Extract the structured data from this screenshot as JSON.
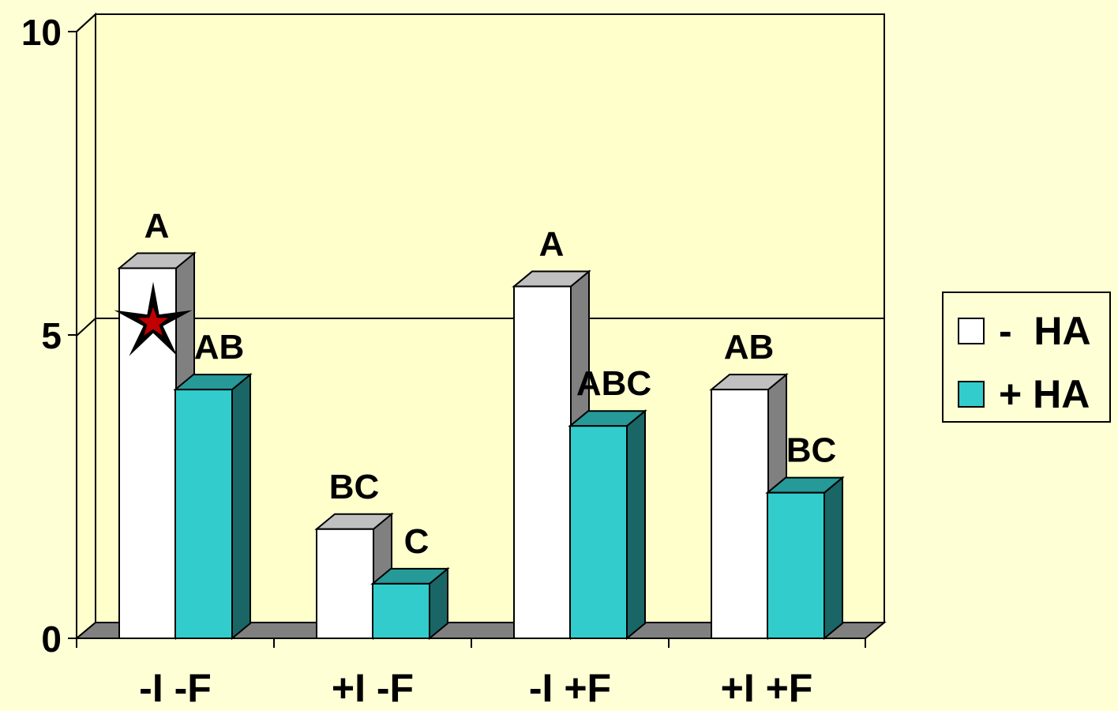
{
  "chart_data": {
    "type": "bar",
    "categories": [
      "-I -F",
      "+I -F",
      "-I +F",
      "+I +F"
    ],
    "series": [
      {
        "name": "-  HA",
        "color": "#ffffff",
        "side_color": "#808080",
        "top_color": "#c0c0c0",
        "values": [
          6.1,
          1.8,
          5.8,
          4.1
        ],
        "labels": [
          "A",
          "BC",
          "A",
          "AB"
        ]
      },
      {
        "name": "+ HA",
        "color": "#33cccc",
        "side_color": "#1a6666",
        "top_color": "#269999",
        "values": [
          4.1,
          0.9,
          3.5,
          2.4
        ],
        "labels": [
          "AB",
          "C",
          "ABC",
          "BC"
        ]
      }
    ],
    "highlight_label_color": "#c00000",
    "highlight": {
      "series": 0,
      "category": 0,
      "marker": "star-icon"
    },
    "y_ticks": [
      "0",
      "5",
      "10"
    ],
    "ylim": [
      0,
      10
    ],
    "grid": true,
    "legend_position": "right",
    "background": "#ffffd6",
    "plot_background": "#ffffcc"
  }
}
